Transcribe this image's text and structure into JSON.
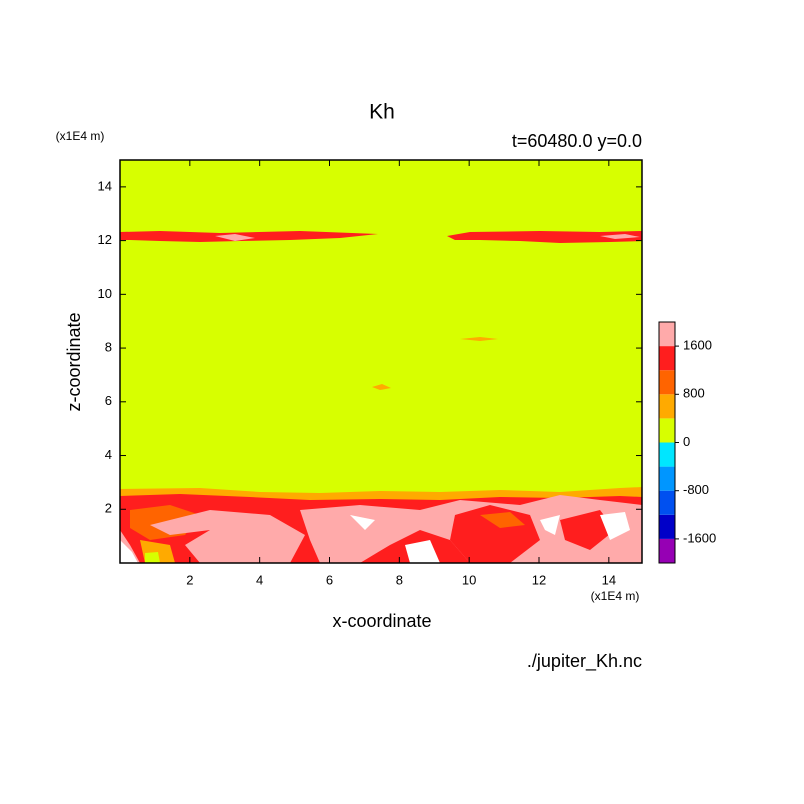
{
  "chart_data": {
    "type": "contour",
    "title": "Kh",
    "subtitle": "t=60480.0 y=0.0",
    "x_label": "x-coordinate",
    "y_label": "z-coordinate",
    "x_unit": "(x1E4 m)",
    "y_unit": "(x1E4 m)",
    "source": "./jupiter_Kh.nc",
    "xlim": [
      0,
      14.95
    ],
    "ylim": [
      0,
      15
    ],
    "xticks": [
      2,
      4,
      6,
      8,
      10,
      12,
      14
    ],
    "yticks": [
      2,
      4,
      6,
      8,
      10,
      12,
      14
    ],
    "colorbar": {
      "lim": [
        -2000,
        2000
      ],
      "ticks": [
        -1600,
        -800,
        0,
        800,
        1600
      ],
      "colors": [
        "#9600b4",
        "#0000c8",
        "#0050f0",
        "#0096ff",
        "#00e6ff",
        "#d7ff00",
        "#ffaa00",
        "#ff6400",
        "#ff1e1e",
        "#ffaaaa"
      ]
    }
  }
}
